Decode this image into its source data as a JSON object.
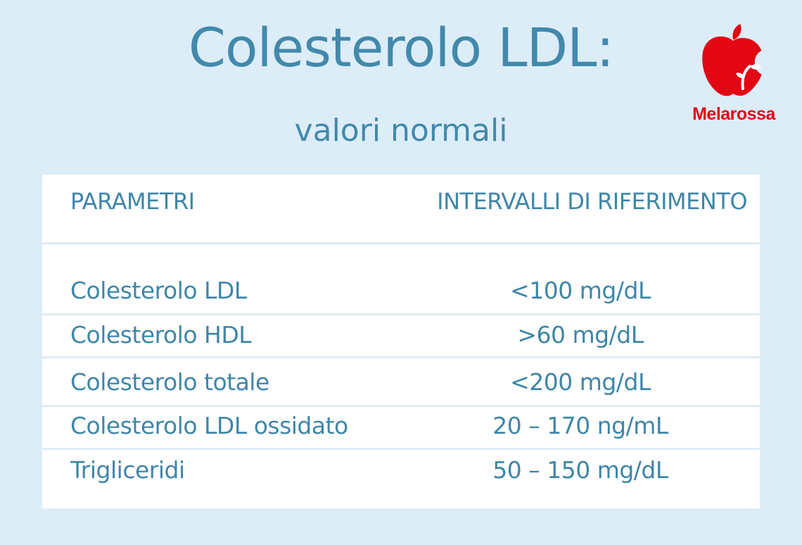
{
  "header": {
    "title": "Colesterolo LDL:",
    "subtitle": "valori normali"
  },
  "brand": {
    "name": "Melarossa",
    "logo_icon": "apple-icon",
    "color": "#e30613"
  },
  "colors": {
    "background": "#dcedf8",
    "text": "#4289ab",
    "table_background": "#ffffff"
  },
  "table": {
    "columns": [
      "PARAMETRI",
      "INTERVALLI DI RIFERIMENTO"
    ],
    "rows": [
      {
        "parametro": "Colesterolo LDL",
        "intervallo": "<100 mg/dL"
      },
      {
        "parametro": "Colesterolo HDL",
        "intervallo": ">60 mg/dL"
      },
      {
        "parametro": "Colesterolo totale",
        "intervallo": "<200 mg/dL"
      },
      {
        "parametro": "Colesterolo LDL ossidato",
        "intervallo": "20 – 170 ng/mL"
      },
      {
        "parametro": "Trigliceridi",
        "intervallo": "50 – 150 mg/dL"
      }
    ]
  }
}
